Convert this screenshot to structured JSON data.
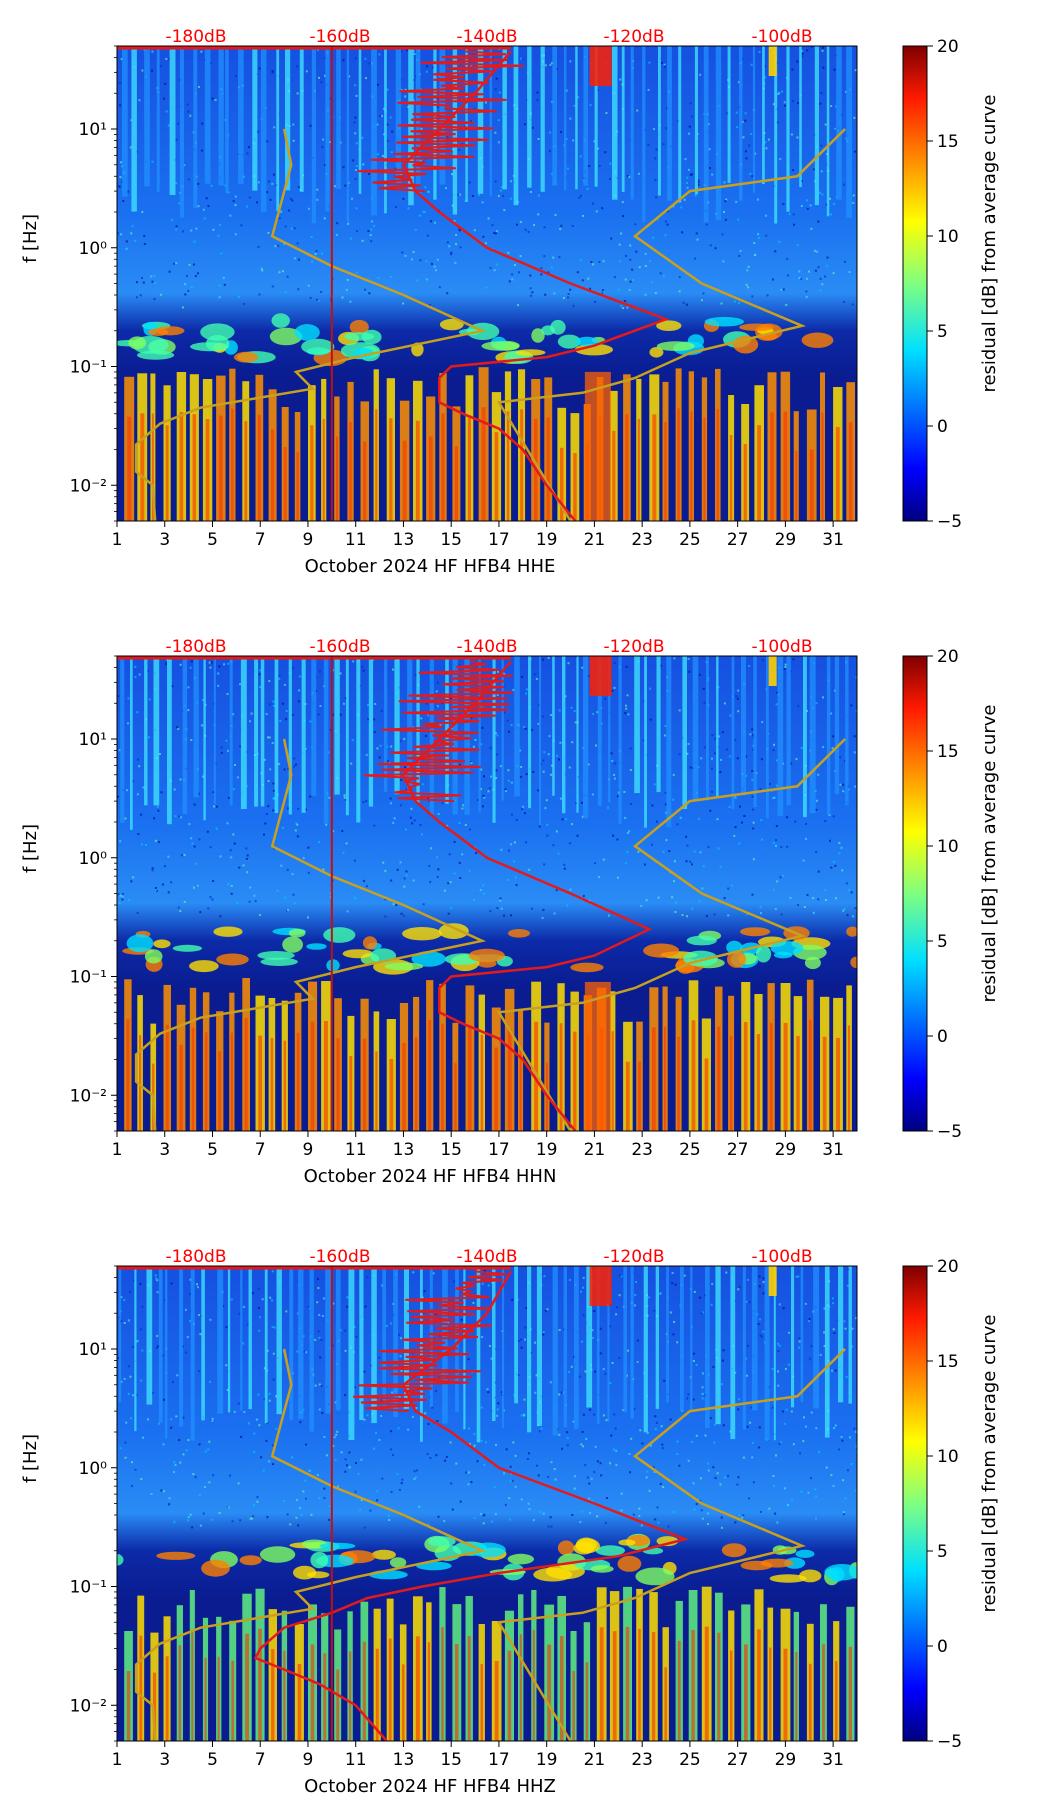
{
  "chart_data": [
    {
      "type": "heatmap",
      "title": "",
      "xlabel": "October 2024 HF HFB4  HHE",
      "ylabel": "f [Hz]",
      "colorbar_label": "residual [dB] from average curve",
      "x_ticks": [
        "1",
        "3",
        "5",
        "7",
        "9",
        "11",
        "13",
        "15",
        "17",
        "19",
        "21",
        "23",
        "25",
        "27",
        "29",
        "31"
      ],
      "xlim": [
        1,
        32
      ],
      "y_ticks": [
        "10⁻²",
        "10⁻¹",
        "10⁰",
        "10¹"
      ],
      "ylim_hz": [
        0.005,
        50
      ],
      "colorbar_ticks": [
        "20",
        "15",
        "10",
        "5",
        "0",
        "−5"
      ],
      "clim": [
        -5,
        20
      ],
      "top_db_labels": [
        "-180dB",
        "-160dB",
        "-140dB",
        "-120dB",
        "-100dB"
      ],
      "series": [
        {
          "name": "mean PSD",
          "color": "#e31a1c",
          "unit_note": "dB plotted against top axis"
        },
        {
          "name": "noise models",
          "color": "#c8a020"
        }
      ]
    },
    {
      "type": "heatmap",
      "title": "",
      "xlabel": "October 2024 HF HFB4  HHN",
      "ylabel": "f [Hz]",
      "colorbar_label": "residual [dB] from average curve",
      "x_ticks": [
        "1",
        "3",
        "5",
        "7",
        "9",
        "11",
        "13",
        "15",
        "17",
        "19",
        "21",
        "23",
        "25",
        "27",
        "29",
        "31"
      ],
      "xlim": [
        1,
        32
      ],
      "y_ticks": [
        "10⁻²",
        "10⁻¹",
        "10⁰",
        "10¹"
      ],
      "ylim_hz": [
        0.005,
        50
      ],
      "colorbar_ticks": [
        "20",
        "15",
        "10",
        "5",
        "0",
        "−5"
      ],
      "clim": [
        -5,
        20
      ],
      "top_db_labels": [
        "-180dB",
        "-160dB",
        "-140dB",
        "-120dB",
        "-100dB"
      ],
      "series": [
        {
          "name": "mean PSD",
          "color": "#e31a1c"
        },
        {
          "name": "noise models",
          "color": "#c8a020"
        }
      ]
    },
    {
      "type": "heatmap",
      "title": "",
      "xlabel": "October 2024 HF HFB4  HHZ",
      "ylabel": "f [Hz]",
      "colorbar_label": "residual [dB] from average curve",
      "x_ticks": [
        "1",
        "3",
        "5",
        "7",
        "9",
        "11",
        "13",
        "15",
        "17",
        "19",
        "21",
        "23",
        "25",
        "27",
        "29",
        "31"
      ],
      "xlim": [
        1,
        32
      ],
      "y_ticks": [
        "10⁻²",
        "10⁻¹",
        "10⁰",
        "10¹"
      ],
      "ylim_hz": [
        0.005,
        50
      ],
      "colorbar_ticks": [
        "20",
        "15",
        "10",
        "5",
        "0",
        "−5"
      ],
      "clim": [
        -5,
        20
      ],
      "top_db_labels": [
        "-180dB",
        "-160dB",
        "-140dB",
        "-120dB",
        "-100dB"
      ],
      "series": [
        {
          "name": "mean PSD",
          "color": "#e31a1c"
        },
        {
          "name": "noise models",
          "color": "#c8a020"
        }
      ]
    }
  ]
}
